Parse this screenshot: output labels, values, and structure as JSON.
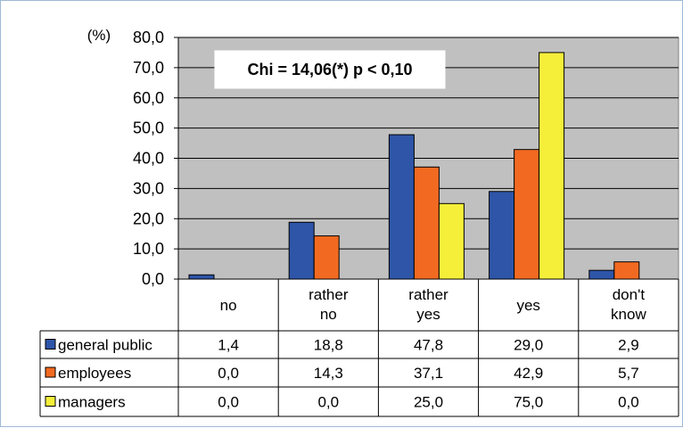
{
  "chart_data": {
    "type": "bar",
    "unit_label": "(%)",
    "annotation": "Chi = 14,06(*)  p < 0,10",
    "categories": [
      [
        "no"
      ],
      [
        "rather",
        "no"
      ],
      [
        "rather",
        "yes"
      ],
      [
        "yes"
      ],
      [
        "don't",
        "know"
      ]
    ],
    "series": [
      {
        "name": "general public",
        "color": "#2e55a8",
        "values": [
          1.4,
          18.8,
          47.8,
          29.0,
          2.9
        ],
        "labels": [
          "1,4",
          "18,8",
          "47,8",
          "29,0",
          "2,9"
        ]
      },
      {
        "name": "employees",
        "color": "#f26a21",
        "values": [
          0.0,
          14.3,
          37.1,
          42.9,
          5.7
        ],
        "labels": [
          "0,0",
          "14,3",
          "37,1",
          "42,9",
          "5,7"
        ]
      },
      {
        "name": "managers",
        "color": "#f5ef3a",
        "values": [
          0.0,
          0.0,
          25.0,
          75.0,
          0.0
        ],
        "labels": [
          "0,0",
          "0,0",
          "25,0",
          "75,0",
          "0,0"
        ]
      }
    ],
    "ylim": [
      0,
      80
    ],
    "yticks": [
      "0,0",
      "10,0",
      "20,0",
      "30,0",
      "40,0",
      "50,0",
      "60,0",
      "70,0",
      "80,0"
    ],
    "grid": true,
    "legend": "data-table",
    "plot_background": "#c0c0c0"
  }
}
